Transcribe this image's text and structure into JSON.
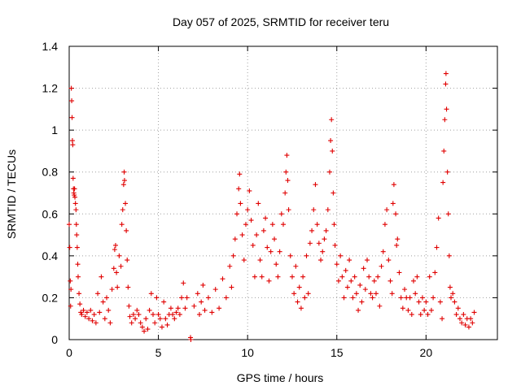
{
  "chart_data": {
    "type": "scatter",
    "title": "Day 057 of 2025, SRMTID for receiver teru",
    "xlabel": "GPS time / hours",
    "ylabel": "SRMTID / TECUs",
    "xlim": [
      0,
      24
    ],
    "ylim": [
      0,
      1.4
    ],
    "xticks": [
      0,
      5,
      10,
      15,
      20
    ],
    "yticks": [
      0,
      0.2,
      0.4,
      0.6,
      0.8,
      1,
      1.2,
      1.4
    ],
    "xtick_labels": [
      "0",
      "5",
      "10",
      "15",
      "20"
    ],
    "ytick_labels": [
      "0",
      "0.2",
      "0.4",
      "0.6",
      "0.8",
      "1",
      "1.2",
      "1.4"
    ],
    "grid": true,
    "marker": "+",
    "color": "#e00000",
    "series": [
      {
        "name": "SRMTID",
        "points": [
          [
            0.0,
            0.55
          ],
          [
            0.03,
            0.44
          ],
          [
            0.06,
            0.28
          ],
          [
            0.08,
            0.16
          ],
          [
            0.1,
            0.24
          ],
          [
            0.12,
            1.2
          ],
          [
            0.14,
            1.14
          ],
          [
            0.16,
            1.06
          ],
          [
            0.18,
            0.95
          ],
          [
            0.2,
            0.93
          ],
          [
            0.22,
            0.77
          ],
          [
            0.24,
            0.72
          ],
          [
            0.26,
            0.7
          ],
          [
            0.28,
            0.69
          ],
          [
            0.3,
            0.72
          ],
          [
            0.32,
            0.68
          ],
          [
            0.35,
            0.65
          ],
          [
            0.38,
            0.62
          ],
          [
            0.4,
            0.55
          ],
          [
            0.42,
            0.5
          ],
          [
            0.45,
            0.44
          ],
          [
            0.48,
            0.36
          ],
          [
            0.5,
            0.3
          ],
          [
            0.55,
            0.22
          ],
          [
            0.6,
            0.17
          ],
          [
            0.65,
            0.13
          ],
          [
            0.7,
            0.12
          ],
          [
            0.8,
            0.14
          ],
          [
            0.9,
            0.11
          ],
          [
            1.0,
            0.13
          ],
          [
            1.1,
            0.1
          ],
          [
            1.2,
            0.14
          ],
          [
            1.3,
            0.09
          ],
          [
            1.4,
            0.12
          ],
          [
            1.5,
            0.08
          ],
          [
            1.6,
            0.22
          ],
          [
            1.7,
            0.13
          ],
          [
            1.8,
            0.3
          ],
          [
            1.9,
            0.18
          ],
          [
            2.0,
            0.1
          ],
          [
            2.1,
            0.2
          ],
          [
            2.2,
            0.14
          ],
          [
            2.3,
            0.08
          ],
          [
            2.4,
            0.24
          ],
          [
            2.5,
            0.34
          ],
          [
            2.55,
            0.43
          ],
          [
            2.6,
            0.45
          ],
          [
            2.65,
            0.32
          ],
          [
            2.7,
            0.25
          ],
          [
            2.8,
            0.4
          ],
          [
            2.9,
            0.35
          ],
          [
            2.95,
            0.55
          ],
          [
            3.0,
            0.62
          ],
          [
            3.05,
            0.74
          ],
          [
            3.08,
            0.8
          ],
          [
            3.1,
            0.76
          ],
          [
            3.15,
            0.65
          ],
          [
            3.2,
            0.52
          ],
          [
            3.25,
            0.38
          ],
          [
            3.3,
            0.25
          ],
          [
            3.35,
            0.16
          ],
          [
            3.4,
            0.11
          ],
          [
            3.5,
            0.08
          ],
          [
            3.6,
            0.12
          ],
          [
            3.7,
            0.1
          ],
          [
            3.8,
            0.14
          ],
          [
            3.9,
            0.12
          ],
          [
            4.0,
            0.08
          ],
          [
            4.1,
            0.06
          ],
          [
            4.2,
            0.04
          ],
          [
            4.3,
            0.1
          ],
          [
            4.4,
            0.05
          ],
          [
            4.5,
            0.14
          ],
          [
            4.6,
            0.22
          ],
          [
            4.7,
            0.12
          ],
          [
            4.8,
            0.08
          ],
          [
            4.9,
            0.2
          ],
          [
            5.0,
            0.12
          ],
          [
            5.1,
            0.1
          ],
          [
            5.2,
            0.06
          ],
          [
            5.3,
            0.18
          ],
          [
            5.4,
            0.1
          ],
          [
            5.5,
            0.07
          ],
          [
            5.6,
            0.12
          ],
          [
            5.7,
            0.15
          ],
          [
            5.8,
            0.12
          ],
          [
            5.9,
            0.1
          ],
          [
            6.0,
            0.13
          ],
          [
            6.1,
            0.15
          ],
          [
            6.2,
            0.12
          ],
          [
            6.3,
            0.2
          ],
          [
            6.4,
            0.27
          ],
          [
            6.5,
            0.15
          ],
          [
            6.6,
            0.2
          ],
          [
            6.8,
            0.01
          ],
          [
            6.82,
            0.0
          ],
          [
            7.0,
            0.16
          ],
          [
            7.2,
            0.22
          ],
          [
            7.3,
            0.12
          ],
          [
            7.4,
            0.18
          ],
          [
            7.5,
            0.26
          ],
          [
            7.6,
            0.14
          ],
          [
            7.8,
            0.2
          ],
          [
            8.0,
            0.13
          ],
          [
            8.2,
            0.24
          ],
          [
            8.4,
            0.15
          ],
          [
            8.6,
            0.29
          ],
          [
            8.8,
            0.2
          ],
          [
            9.0,
            0.35
          ],
          [
            9.1,
            0.25
          ],
          [
            9.2,
            0.4
          ],
          [
            9.3,
            0.48
          ],
          [
            9.4,
            0.6
          ],
          [
            9.5,
            0.72
          ],
          [
            9.55,
            0.79
          ],
          [
            9.6,
            0.65
          ],
          [
            9.7,
            0.5
          ],
          [
            9.8,
            0.38
          ],
          [
            9.9,
            0.55
          ],
          [
            10.0,
            0.62
          ],
          [
            10.1,
            0.71
          ],
          [
            10.2,
            0.57
          ],
          [
            10.3,
            0.45
          ],
          [
            10.4,
            0.3
          ],
          [
            10.5,
            0.5
          ],
          [
            10.6,
            0.65
          ],
          [
            10.7,
            0.38
          ],
          [
            10.8,
            0.3
          ],
          [
            10.9,
            0.52
          ],
          [
            11.0,
            0.58
          ],
          [
            11.1,
            0.44
          ],
          [
            11.2,
            0.28
          ],
          [
            11.3,
            0.42
          ],
          [
            11.4,
            0.55
          ],
          [
            11.5,
            0.48
          ],
          [
            11.6,
            0.36
          ],
          [
            11.7,
            0.3
          ],
          [
            11.8,
            0.42
          ],
          [
            11.9,
            0.6
          ],
          [
            12.0,
            0.55
          ],
          [
            12.1,
            0.7
          ],
          [
            12.15,
            0.8
          ],
          [
            12.2,
            0.88
          ],
          [
            12.25,
            0.76
          ],
          [
            12.3,
            0.62
          ],
          [
            12.4,
            0.4
          ],
          [
            12.5,
            0.3
          ],
          [
            12.6,
            0.22
          ],
          [
            12.7,
            0.35
          ],
          [
            12.8,
            0.18
          ],
          [
            12.9,
            0.25
          ],
          [
            13.0,
            0.15
          ],
          [
            13.1,
            0.3
          ],
          [
            13.2,
            0.2
          ],
          [
            13.3,
            0.4
          ],
          [
            13.4,
            0.22
          ],
          [
            13.5,
            0.46
          ],
          [
            13.6,
            0.52
          ],
          [
            13.7,
            0.62
          ],
          [
            13.8,
            0.74
          ],
          [
            13.9,
            0.55
          ],
          [
            14.0,
            0.46
          ],
          [
            14.1,
            0.38
          ],
          [
            14.2,
            0.42
          ],
          [
            14.3,
            0.48
          ],
          [
            14.4,
            0.52
          ],
          [
            14.5,
            0.62
          ],
          [
            14.6,
            0.8
          ],
          [
            14.65,
            0.95
          ],
          [
            14.7,
            1.05
          ],
          [
            14.75,
            0.9
          ],
          [
            14.8,
            0.7
          ],
          [
            14.85,
            0.55
          ],
          [
            14.9,
            0.45
          ],
          [
            15.0,
            0.36
          ],
          [
            15.1,
            0.28
          ],
          [
            15.2,
            0.4
          ],
          [
            15.3,
            0.3
          ],
          [
            15.4,
            0.2
          ],
          [
            15.5,
            0.33
          ],
          [
            15.6,
            0.25
          ],
          [
            15.7,
            0.38
          ],
          [
            15.8,
            0.28
          ],
          [
            15.9,
            0.2
          ],
          [
            16.0,
            0.3
          ],
          [
            16.1,
            0.22
          ],
          [
            16.2,
            0.14
          ],
          [
            16.3,
            0.26
          ],
          [
            16.4,
            0.18
          ],
          [
            16.5,
            0.34
          ],
          [
            16.6,
            0.24
          ],
          [
            16.7,
            0.38
          ],
          [
            16.8,
            0.3
          ],
          [
            16.9,
            0.22
          ],
          [
            17.0,
            0.2
          ],
          [
            17.1,
            0.28
          ],
          [
            17.2,
            0.22
          ],
          [
            17.3,
            0.3
          ],
          [
            17.4,
            0.16
          ],
          [
            17.5,
            0.35
          ],
          [
            17.6,
            0.42
          ],
          [
            17.7,
            0.55
          ],
          [
            17.8,
            0.62
          ],
          [
            17.9,
            0.38
          ],
          [
            18.0,
            0.28
          ],
          [
            18.1,
            0.22
          ],
          [
            18.15,
            0.65
          ],
          [
            18.2,
            0.74
          ],
          [
            18.3,
            0.6
          ],
          [
            18.35,
            0.45
          ],
          [
            18.4,
            0.48
          ],
          [
            18.5,
            0.32
          ],
          [
            18.6,
            0.2
          ],
          [
            18.7,
            0.15
          ],
          [
            18.8,
            0.24
          ],
          [
            18.9,
            0.2
          ],
          [
            19.0,
            0.14
          ],
          [
            19.1,
            0.2
          ],
          [
            19.2,
            0.12
          ],
          [
            19.3,
            0.28
          ],
          [
            19.4,
            0.22
          ],
          [
            19.5,
            0.3
          ],
          [
            19.6,
            0.18
          ],
          [
            19.7,
            0.12
          ],
          [
            19.8,
            0.2
          ],
          [
            19.9,
            0.14
          ],
          [
            20.0,
            0.18
          ],
          [
            20.1,
            0.12
          ],
          [
            20.2,
            0.3
          ],
          [
            20.3,
            0.14
          ],
          [
            20.4,
            0.2
          ],
          [
            20.5,
            0.32
          ],
          [
            20.6,
            0.44
          ],
          [
            20.7,
            0.58
          ],
          [
            20.8,
            0.18
          ],
          [
            20.9,
            0.1
          ],
          [
            20.95,
            0.75
          ],
          [
            21.0,
            0.9
          ],
          [
            21.05,
            1.05
          ],
          [
            21.1,
            1.22
          ],
          [
            21.12,
            1.27
          ],
          [
            21.15,
            1.1
          ],
          [
            21.2,
            0.8
          ],
          [
            21.25,
            0.6
          ],
          [
            21.3,
            0.4
          ],
          [
            21.35,
            0.25
          ],
          [
            21.4,
            0.2
          ],
          [
            21.5,
            0.22
          ],
          [
            21.6,
            0.18
          ],
          [
            21.7,
            0.12
          ],
          [
            21.8,
            0.15
          ],
          [
            21.9,
            0.1
          ],
          [
            22.0,
            0.08
          ],
          [
            22.1,
            0.12
          ],
          [
            22.2,
            0.07
          ],
          [
            22.3,
            0.1
          ],
          [
            22.4,
            0.06
          ],
          [
            22.5,
            0.1
          ],
          [
            22.6,
            0.08
          ],
          [
            22.7,
            0.13
          ]
        ]
      }
    ]
  }
}
